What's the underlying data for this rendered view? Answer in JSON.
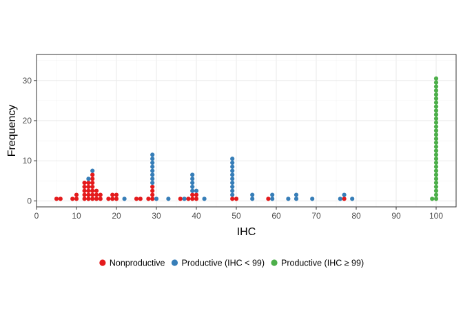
{
  "chart_data": {
    "type": "scatter",
    "subtype": "dotplot",
    "title": "",
    "xlabel": "IHC",
    "ylabel": "Frequency",
    "xlim": [
      0,
      105
    ],
    "ylim": [
      -1.5,
      36.5
    ],
    "x_ticks": [
      0,
      10,
      20,
      30,
      40,
      50,
      60,
      70,
      80,
      90,
      100
    ],
    "x_minor_ticks": [
      5,
      15,
      25,
      35,
      45,
      55,
      65,
      75,
      85,
      95
    ],
    "y_ticks": [
      0,
      10,
      20,
      30
    ],
    "grid": true,
    "legend_position": "bottom",
    "series": [
      {
        "name": "Nonproductive",
        "color": "#e41a1c",
        "points": [
          {
            "x": 5,
            "count": 1
          },
          {
            "x": 6,
            "count": 1
          },
          {
            "x": 9,
            "count": 1
          },
          {
            "x": 10,
            "count": 2
          },
          {
            "x": 12,
            "count": 5
          },
          {
            "x": 13,
            "count": 5
          },
          {
            "x": 14,
            "count": 7
          },
          {
            "x": 15,
            "count": 3
          },
          {
            "x": 16,
            "count": 2
          },
          {
            "x": 18,
            "count": 1
          },
          {
            "x": 19,
            "count": 2
          },
          {
            "x": 20,
            "count": 2
          },
          {
            "x": 25,
            "count": 1
          },
          {
            "x": 26,
            "count": 1
          },
          {
            "x": 28,
            "count": 1
          },
          {
            "x": 29,
            "count": 4
          },
          {
            "x": 36,
            "count": 1
          },
          {
            "x": 38,
            "count": 1
          },
          {
            "x": 39,
            "count": 2
          },
          {
            "x": 40,
            "count": 2
          },
          {
            "x": 49,
            "count": 1
          },
          {
            "x": 50,
            "count": 1
          },
          {
            "x": 58,
            "count": 1
          },
          {
            "x": 77,
            "count": 1
          }
        ]
      },
      {
        "name": "Productive (IHC < 99)",
        "color": "#377eb8",
        "stack_on": "Nonproductive",
        "points": [
          {
            "x": 13,
            "count": 1
          },
          {
            "x": 14,
            "count": 1
          },
          {
            "x": 22,
            "count": 1
          },
          {
            "x": 29,
            "count": 8
          },
          {
            "x": 30,
            "count": 1
          },
          {
            "x": 33,
            "count": 1
          },
          {
            "x": 37,
            "count": 1
          },
          {
            "x": 39,
            "count": 5
          },
          {
            "x": 40,
            "count": 1
          },
          {
            "x": 42,
            "count": 1
          },
          {
            "x": 49,
            "count": 10
          },
          {
            "x": 54,
            "count": 2
          },
          {
            "x": 59,
            "count": 2
          },
          {
            "x": 63,
            "count": 1
          },
          {
            "x": 65,
            "count": 2
          },
          {
            "x": 69,
            "count": 1
          },
          {
            "x": 76,
            "count": 1
          },
          {
            "x": 77,
            "count": 1
          },
          {
            "x": 79,
            "count": 1
          }
        ]
      },
      {
        "name": "Productive (IHC ≥ 99)",
        "color": "#4daf4a",
        "points": [
          {
            "x": 99,
            "count": 1
          },
          {
            "x": 100,
            "count": 31
          }
        ]
      }
    ]
  }
}
